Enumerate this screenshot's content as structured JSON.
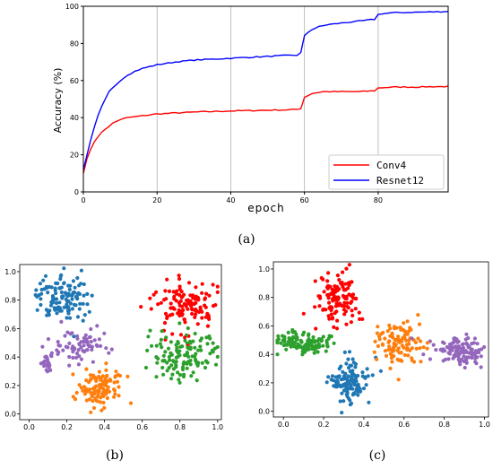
{
  "panels": {
    "a": "(a)",
    "b": "(b)",
    "c": "(c)"
  },
  "chart_data": [
    {
      "type": "line",
      "title": "",
      "xlabel": "epoch",
      "ylabel": "Accuracy (%)",
      "xlim": [
        0,
        99
      ],
      "ylim": [
        0,
        100
      ],
      "xticks": [
        0,
        20,
        40,
        60,
        80
      ],
      "yticks": [
        0,
        20,
        40,
        60,
        80,
        100
      ],
      "grid": true,
      "legend_position": "bottom-right",
      "series": [
        {
          "name": "Conv4",
          "color": "#ff0000",
          "x": [
            0,
            1,
            2,
            3,
            4,
            5,
            6,
            7,
            8,
            9,
            10,
            12,
            14,
            16,
            18,
            20,
            25,
            30,
            35,
            40,
            45,
            50,
            55,
            58,
            59,
            60,
            62,
            65,
            70,
            75,
            79,
            80,
            82,
            85,
            90,
            95,
            99
          ],
          "y": [
            10,
            18,
            23,
            27,
            30,
            32,
            34,
            35.5,
            37,
            38,
            39,
            40,
            40.5,
            41,
            41.5,
            42,
            42.5,
            43,
            43.3,
            43.6,
            43.8,
            44,
            44.2,
            44.4,
            45,
            51,
            53,
            54,
            54,
            54,
            54.5,
            56,
            56.3,
            56.5,
            56.5,
            56.7,
            56.8
          ]
        },
        {
          "name": "Resnet12",
          "color": "#0000ff",
          "x": [
            0,
            1,
            2,
            3,
            4,
            5,
            6,
            7,
            8,
            9,
            10,
            12,
            14,
            16,
            18,
            20,
            25,
            30,
            35,
            40,
            45,
            50,
            55,
            58,
            59,
            60,
            61,
            62,
            64,
            66,
            70,
            75,
            79,
            80,
            81,
            84,
            90,
            95,
            99
          ],
          "y": [
            12,
            20,
            28,
            35,
            41,
            46,
            50,
            54,
            56,
            58,
            60,
            63,
            65,
            66.5,
            67.5,
            68.5,
            70,
            71,
            71.5,
            72,
            72.5,
            73,
            73.5,
            73.7,
            75,
            84,
            86,
            87.5,
            89,
            90,
            91,
            92,
            93,
            95.5,
            96,
            96.5,
            96.8,
            97,
            97.2
          ]
        }
      ]
    },
    {
      "type": "scatter",
      "title": "",
      "xlim": [
        -0.05,
        1.02
      ],
      "ylim": [
        -0.04,
        1.05
      ],
      "xticks": [
        0.0,
        0.2,
        0.4,
        0.6,
        0.8,
        1.0
      ],
      "yticks": [
        0.0,
        0.2,
        0.4,
        0.6,
        0.8,
        1.0
      ],
      "tick_labels": [
        "0.0",
        "0.2",
        "0.4",
        "0.6",
        "0.8",
        "1.0"
      ],
      "clusters": [
        {
          "color": "#1f77b4",
          "center": [
            0.18,
            0.82
          ],
          "spread": [
            0.07,
            0.08
          ],
          "count": 120
        },
        {
          "color": "#9467bd",
          "center": [
            0.28,
            0.48
          ],
          "spread": [
            0.07,
            0.06
          ],
          "count": 70
        },
        {
          "color": "#9467bd",
          "center": [
            0.1,
            0.36
          ],
          "spread": [
            0.025,
            0.04
          ],
          "count": 25
        },
        {
          "color": "#ff7f0e",
          "center": [
            0.38,
            0.18
          ],
          "spread": [
            0.06,
            0.07
          ],
          "count": 110
        },
        {
          "color": "#ff0000",
          "center": [
            0.82,
            0.75
          ],
          "spread": [
            0.09,
            0.08
          ],
          "count": 120
        },
        {
          "color": "#2ca02c",
          "center": [
            0.82,
            0.4
          ],
          "spread": [
            0.09,
            0.09
          ],
          "count": 120
        }
      ]
    },
    {
      "type": "scatter",
      "title": "",
      "xlim": [
        -0.05,
        1.02
      ],
      "ylim": [
        -0.04,
        1.05
      ],
      "xticks": [
        0.0,
        0.2,
        0.4,
        0.6,
        0.8,
        1.0
      ],
      "yticks": [
        0.0,
        0.2,
        0.4,
        0.6,
        0.8,
        1.0
      ],
      "tick_labels": [
        "0.0",
        "0.2",
        "0.4",
        "0.6",
        "0.8",
        "1.0"
      ],
      "clusters": [
        {
          "color": "#ff0000",
          "center": [
            0.27,
            0.8
          ],
          "spread": [
            0.05,
            0.1
          ],
          "count": 120
        },
        {
          "color": "#2ca02c",
          "center": [
            0.1,
            0.48
          ],
          "spread": [
            0.08,
            0.035
          ],
          "count": 110
        },
        {
          "color": "#1f77b4",
          "center": [
            0.33,
            0.2
          ],
          "spread": [
            0.05,
            0.08
          ],
          "count": 120
        },
        {
          "color": "#ff7f0e",
          "center": [
            0.57,
            0.48
          ],
          "spread": [
            0.06,
            0.08
          ],
          "count": 110
        },
        {
          "color": "#9467bd",
          "center": [
            0.88,
            0.42
          ],
          "spread": [
            0.07,
            0.05
          ],
          "count": 120
        }
      ]
    }
  ]
}
